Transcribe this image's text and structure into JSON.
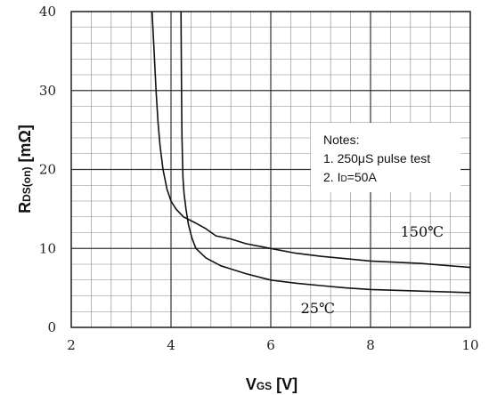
{
  "chart_data": {
    "type": "line",
    "title": "",
    "xlabel": {
      "main": "V",
      "sub": "GS",
      "unit": " [V]"
    },
    "ylabel": {
      "main": "R",
      "sub": "DS(on)",
      "unit": " [mΩ]"
    },
    "xlim": [
      2,
      10
    ],
    "ylim": [
      0,
      40
    ],
    "x_major_ticks": [
      2,
      4,
      6,
      8,
      10
    ],
    "y_major_ticks": [
      0,
      10,
      20,
      30,
      40
    ],
    "x_tick_labels": [
      "2",
      "4",
      "6",
      "8",
      "10"
    ],
    "y_tick_labels": [
      "0",
      "10",
      "20",
      "30",
      "40"
    ],
    "grid": true,
    "x_minor_step": 0.4,
    "y_minor_step": 2,
    "series": [
      {
        "name": "25℃",
        "points": [
          [
            4.2,
            40
          ],
          [
            4.21,
            30
          ],
          [
            4.22,
            24
          ],
          [
            4.24,
            19
          ],
          [
            4.26,
            17
          ],
          [
            4.3,
            15
          ],
          [
            4.35,
            13
          ],
          [
            4.42,
            11.3
          ],
          [
            4.5,
            10
          ],
          [
            4.7,
            8.8
          ],
          [
            5.0,
            7.8
          ],
          [
            5.5,
            6.8
          ],
          [
            6.0,
            6.0
          ],
          [
            6.5,
            5.6
          ],
          [
            7.0,
            5.3
          ],
          [
            7.5,
            5.0
          ],
          [
            8.0,
            4.8
          ],
          [
            9.0,
            4.6
          ],
          [
            10.0,
            4.4
          ]
        ]
      },
      {
        "name": "150℃",
        "points": [
          [
            3.62,
            40
          ],
          [
            3.66,
            35
          ],
          [
            3.7,
            30
          ],
          [
            3.74,
            26
          ],
          [
            3.78,
            23
          ],
          [
            3.84,
            20
          ],
          [
            3.92,
            17.5
          ],
          [
            4.0,
            16
          ],
          [
            4.1,
            15
          ],
          [
            4.25,
            14
          ],
          [
            4.5,
            13.2
          ],
          [
            4.7,
            12.5
          ],
          [
            4.9,
            11.6
          ],
          [
            5.2,
            11.2
          ],
          [
            5.5,
            10.6
          ],
          [
            6.0,
            10.0
          ],
          [
            6.5,
            9.4
          ],
          [
            7.0,
            9.0
          ],
          [
            8.0,
            8.4
          ],
          [
            9.0,
            8.1
          ],
          [
            10.0,
            7.6
          ]
        ]
      }
    ],
    "series_labels": [
      {
        "text": "150℃",
        "x": 8.6,
        "y": 11.5
      },
      {
        "text": "25℃",
        "x": 6.6,
        "y": 1.8
      }
    ],
    "notes": {
      "title": "Notes:",
      "line1": "1. 250μS pulse test",
      "line2_prefix": "2. I",
      "line2_sub": "D",
      "line2_suffix": "=50A"
    }
  }
}
